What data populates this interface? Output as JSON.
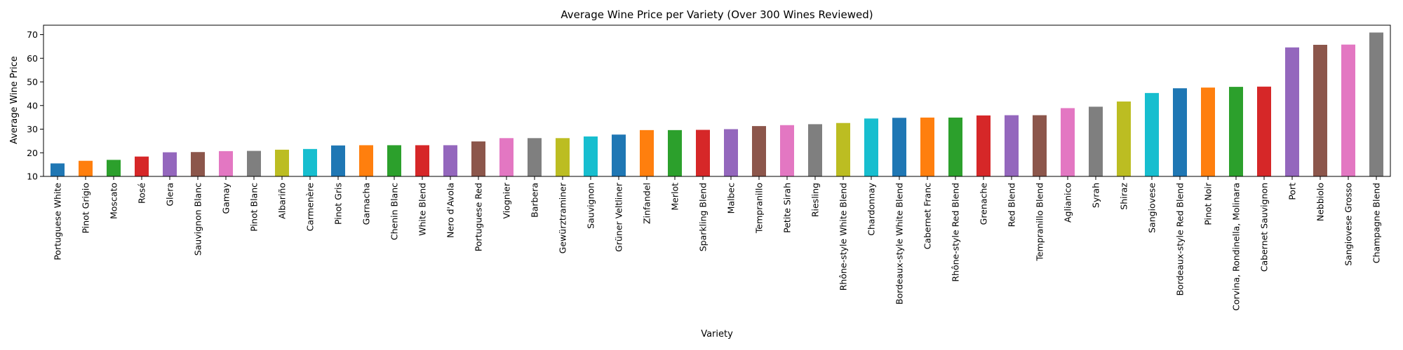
{
  "chart_data": {
    "type": "bar",
    "title": "Average Wine Price per Variety (Over 300 Wines Reviewed)",
    "xlabel": "Variety",
    "ylabel": "Average Wine Price",
    "ylim": [
      10,
      74
    ],
    "yticks": [
      10,
      20,
      30,
      40,
      50,
      60,
      70
    ],
    "grid": false,
    "legend": "none",
    "categories": [
      "Portuguese White",
      "Pinot Grigio",
      "Moscato",
      "Rosé",
      "Glera",
      "Sauvignon Blanc",
      "Gamay",
      "Pinot Blanc",
      "Albariño",
      "Carmenère",
      "Pinot Gris",
      "Garnacha",
      "Chenin Blanc",
      "White Blend",
      "Nero d'Avola",
      "Portuguese Red",
      "Viognier",
      "Barbera",
      "Gewürztraminer",
      "Sauvignon",
      "Grüner Veltliner",
      "Zinfandel",
      "Merlot",
      "Sparkling Blend",
      "Malbec",
      "Tempranillo",
      "Petite Sirah",
      "Riesling",
      "Rhône-style White Blend",
      "Chardonnay",
      "Bordeaux-style White Blend",
      "Cabernet Franc",
      "Rhône-style Red Blend",
      "Grenache",
      "Red Blend",
      "Tempranillo Blend",
      "Aglianico",
      "Syrah",
      "Shiraz",
      "Sangiovese",
      "Bordeaux-style Red Blend",
      "Pinot Noir",
      "Corvina, Rondinella, Molinara",
      "Cabernet Sauvignon",
      "Port",
      "Nebbiolo",
      "Sangiovese Grosso",
      "Champagne Blend"
    ],
    "values": [
      15.5,
      16.6,
      17.0,
      18.4,
      20.2,
      20.3,
      20.7,
      20.8,
      21.3,
      21.6,
      23.1,
      23.2,
      23.2,
      23.2,
      23.2,
      24.8,
      26.2,
      26.2,
      26.2,
      26.9,
      27.7,
      29.6,
      29.6,
      29.7,
      30.0,
      31.3,
      31.7,
      32.1,
      32.6,
      34.5,
      34.8,
      34.9,
      34.9,
      35.8,
      35.9,
      35.9,
      38.9,
      39.5,
      41.7,
      45.3,
      47.3,
      47.6,
      47.9,
      48.0,
      64.6,
      65.7,
      65.8,
      70.9
    ],
    "colors": [
      "#1f77b4",
      "#ff7f0e",
      "#2ca02c",
      "#d62728",
      "#9467bd",
      "#8c564b",
      "#e377c2",
      "#7f7f7f",
      "#bcbd22",
      "#17becf"
    ]
  }
}
